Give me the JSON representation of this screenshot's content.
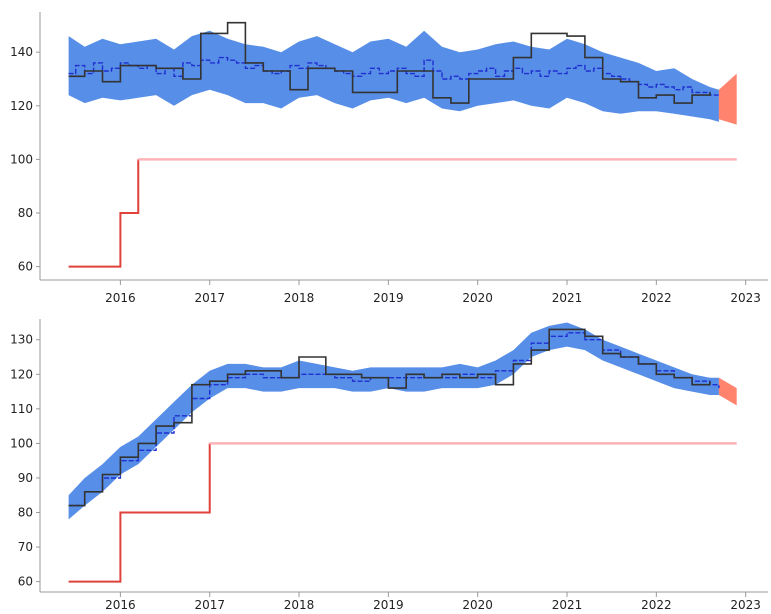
{
  "colors": {
    "band": "#3a7ae3",
    "band_opacity": 0.85,
    "forecast": "#ff5a3c",
    "forecast_opacity": 0.75,
    "observed": "#333333",
    "estimate": "#1f2fd0",
    "limit": "#ffb3b8",
    "limit_step": "#e0413b",
    "axis": "#999999"
  },
  "chart_data": [
    {
      "type": "line",
      "title": "",
      "xlabel": "",
      "ylabel": "",
      "x_ticks": [
        2016,
        2017,
        2018,
        2019,
        2020,
        2021,
        2022,
        2023
      ],
      "y_ticks": [
        60,
        80,
        100,
        120,
        140
      ],
      "xlim": [
        2015.1,
        2023.25
      ],
      "ylim": [
        55,
        155
      ],
      "grid": false,
      "legend": "none",
      "series": [
        {
          "role": "band",
          "x": [
            2015.42,
            2015.6,
            2015.8,
            2016.0,
            2016.2,
            2016.4,
            2016.6,
            2016.8,
            2017.0,
            2017.2,
            2017.4,
            2017.6,
            2017.8,
            2018.0,
            2018.2,
            2018.4,
            2018.6,
            2018.8,
            2019.0,
            2019.2,
            2019.4,
            2019.6,
            2019.8,
            2020.0,
            2020.2,
            2020.4,
            2020.6,
            2020.8,
            2021.0,
            2021.2,
            2021.4,
            2021.6,
            2021.8,
            2022.0,
            2022.2,
            2022.4,
            2022.6,
            2022.7
          ],
          "upper": [
            146,
            142,
            145,
            143,
            144,
            145,
            141,
            146,
            148,
            145,
            143,
            142,
            140,
            144,
            146,
            143,
            140,
            144,
            145,
            142,
            148,
            142,
            140,
            141,
            143,
            144,
            142,
            141,
            145,
            143,
            140,
            138,
            136,
            133,
            134,
            130,
            127,
            126
          ],
          "lower": [
            124,
            121,
            123,
            122,
            123,
            124,
            120,
            124,
            126,
            124,
            121,
            121,
            119,
            123,
            124,
            121,
            119,
            122,
            123,
            121,
            123,
            119,
            118,
            120,
            121,
            122,
            120,
            119,
            123,
            121,
            118,
            117,
            118,
            118,
            117,
            116,
            115,
            114
          ]
        },
        {
          "role": "forecast",
          "x": [
            2022.7,
            2022.9
          ],
          "upper": [
            126,
            132
          ],
          "lower": [
            115,
            113
          ]
        },
        {
          "role": "observed",
          "x": [
            2015.42,
            2015.6,
            2015.8,
            2016.0,
            2016.2,
            2016.4,
            2016.7,
            2016.9,
            2017.2,
            2017.4,
            2017.6,
            2017.9,
            2018.1,
            2018.4,
            2018.6,
            2018.8,
            2019.1,
            2019.3,
            2019.5,
            2019.7,
            2019.9,
            2020.1,
            2020.4,
            2020.6,
            2020.8,
            2021.0,
            2021.2,
            2021.4,
            2021.6,
            2021.8,
            2022.0,
            2022.2,
            2022.4,
            2022.6
          ],
          "y": [
            131,
            133,
            129,
            135,
            135,
            134,
            130,
            147,
            151,
            136,
            133,
            126,
            134,
            133,
            125,
            125,
            133,
            133,
            123,
            121,
            130,
            130,
            138,
            147,
            147,
            146,
            138,
            130,
            129,
            123,
            124,
            121,
            124,
            125
          ]
        },
        {
          "role": "estimate",
          "x": [
            2015.42,
            2015.5,
            2015.6,
            2015.7,
            2015.8,
            2015.9,
            2016.0,
            2016.1,
            2016.2,
            2016.3,
            2016.4,
            2016.5,
            2016.6,
            2016.7,
            2016.8,
            2016.9,
            2017.0,
            2017.1,
            2017.2,
            2017.3,
            2017.4,
            2017.5,
            2017.6,
            2017.7,
            2017.8,
            2017.9,
            2018.0,
            2018.1,
            2018.2,
            2018.3,
            2018.4,
            2018.5,
            2018.6,
            2018.7,
            2018.8,
            2018.9,
            2019.0,
            2019.1,
            2019.2,
            2019.3,
            2019.4,
            2019.5,
            2019.6,
            2019.7,
            2019.8,
            2019.9,
            2020.0,
            2020.1,
            2020.2,
            2020.3,
            2020.4,
            2020.5,
            2020.6,
            2020.7,
            2020.8,
            2020.9,
            2021.0,
            2021.1,
            2021.2,
            2021.3,
            2021.4,
            2021.5,
            2021.6,
            2021.7,
            2021.8,
            2021.9,
            2022.0,
            2022.1,
            2022.2,
            2022.3,
            2022.4,
            2022.5,
            2022.6,
            2022.7
          ],
          "y": [
            132,
            135,
            132,
            136,
            133,
            134,
            136,
            135,
            134,
            135,
            132,
            134,
            131,
            136,
            135,
            137,
            136,
            138,
            137,
            136,
            134,
            135,
            133,
            132,
            133,
            135,
            134,
            136,
            135,
            134,
            133,
            132,
            131,
            132,
            134,
            132,
            133,
            134,
            132,
            131,
            137,
            133,
            130,
            131,
            130,
            132,
            133,
            134,
            131,
            133,
            134,
            132,
            133,
            131,
            133,
            132,
            134,
            135,
            133,
            134,
            132,
            131,
            130,
            129,
            128,
            127,
            128,
            127,
            126,
            127,
            125,
            125,
            124,
            124
          ]
        },
        {
          "role": "limit",
          "x": [
            2015.42,
            2016.0,
            2016.0,
            2016.2,
            2016.2,
            2022.9
          ],
          "y": [
            60,
            60,
            80,
            80,
            100,
            100
          ]
        }
      ]
    },
    {
      "type": "line",
      "title": "",
      "xlabel": "",
      "ylabel": "",
      "x_ticks": [
        2016,
        2017,
        2018,
        2019,
        2020,
        2021,
        2022,
        2023
      ],
      "y_ticks": [
        60,
        70,
        80,
        90,
        100,
        110,
        120,
        130
      ],
      "xlim": [
        2015.1,
        2023.25
      ],
      "ylim": [
        57,
        136
      ],
      "grid": false,
      "legend": "none",
      "series": [
        {
          "role": "band",
          "x": [
            2015.42,
            2015.6,
            2015.8,
            2016.0,
            2016.2,
            2016.4,
            2016.6,
            2016.8,
            2017.0,
            2017.2,
            2017.4,
            2017.6,
            2017.8,
            2018.0,
            2018.2,
            2018.4,
            2018.6,
            2018.8,
            2019.0,
            2019.2,
            2019.4,
            2019.6,
            2019.8,
            2020.0,
            2020.2,
            2020.4,
            2020.6,
            2020.8,
            2021.0,
            2021.2,
            2021.4,
            2021.6,
            2021.8,
            2022.0,
            2022.2,
            2022.4,
            2022.6,
            2022.7
          ],
          "upper": [
            85,
            90,
            94,
            99,
            102,
            107,
            112,
            117,
            121,
            123,
            123,
            122,
            122,
            124,
            123,
            122,
            121,
            122,
            122,
            122,
            122,
            122,
            123,
            122,
            124,
            127,
            132,
            134,
            135,
            133,
            130,
            128,
            126,
            124,
            122,
            120,
            119,
            119
          ],
          "lower": [
            78,
            82,
            86,
            91,
            94,
            99,
            104,
            109,
            113,
            116,
            116,
            115,
            115,
            116,
            116,
            116,
            115,
            115,
            116,
            115,
            115,
            116,
            116,
            116,
            117,
            120,
            125,
            127,
            128,
            127,
            124,
            122,
            120,
            118,
            116,
            115,
            114,
            114
          ]
        },
        {
          "role": "forecast",
          "x": [
            2022.7,
            2022.9
          ],
          "upper": [
            119,
            116
          ],
          "lower": [
            114,
            111
          ]
        },
        {
          "role": "observed",
          "x": [
            2015.42,
            2015.6,
            2015.8,
            2016.0,
            2016.2,
            2016.4,
            2016.6,
            2016.8,
            2017.0,
            2017.2,
            2017.4,
            2017.6,
            2017.8,
            2018.0,
            2018.3,
            2018.5,
            2018.7,
            2019.0,
            2019.2,
            2019.4,
            2019.6,
            2019.8,
            2020.0,
            2020.2,
            2020.4,
            2020.6,
            2020.8,
            2021.0,
            2021.2,
            2021.4,
            2021.6,
            2021.8,
            2022.0,
            2022.2,
            2022.4,
            2022.6
          ],
          "y": [
            82,
            86,
            91,
            96,
            100,
            105,
            106,
            117,
            118,
            120,
            121,
            121,
            119,
            125,
            120,
            120,
            119,
            116,
            120,
            119,
            120,
            119,
            120,
            117,
            123,
            127,
            133,
            133,
            131,
            126,
            125,
            123,
            120,
            119,
            117,
            118
          ]
        },
        {
          "role": "estimate",
          "x": [
            2015.42,
            2015.6,
            2015.8,
            2016.0,
            2016.2,
            2016.4,
            2016.6,
            2016.8,
            2017.0,
            2017.2,
            2017.4,
            2017.6,
            2017.8,
            2018.0,
            2018.2,
            2018.4,
            2018.6,
            2018.8,
            2019.0,
            2019.2,
            2019.4,
            2019.6,
            2019.8,
            2020.0,
            2020.2,
            2020.4,
            2020.6,
            2020.8,
            2021.0,
            2021.2,
            2021.4,
            2021.6,
            2021.8,
            2022.0,
            2022.2,
            2022.4,
            2022.6,
            2022.7
          ],
          "y": [
            82,
            86,
            90,
            95,
            98,
            103,
            108,
            113,
            117,
            119,
            120,
            119,
            119,
            120,
            120,
            119,
            118,
            119,
            119,
            119,
            119,
            119,
            120,
            119,
            121,
            124,
            129,
            131,
            132,
            130,
            127,
            125,
            123,
            121,
            119,
            118,
            117,
            116
          ]
        },
        {
          "role": "limit",
          "x": [
            2015.42,
            2016.0,
            2016.0,
            2017.0,
            2017.0,
            2022.9
          ],
          "y": [
            60,
            60,
            80,
            80,
            100,
            100
          ]
        }
      ]
    }
  ]
}
